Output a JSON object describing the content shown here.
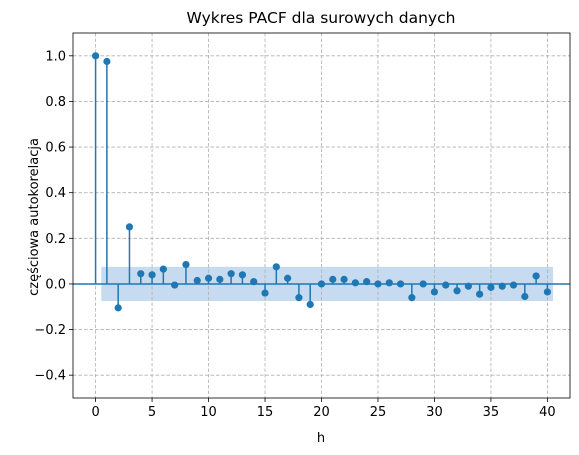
{
  "chart_data": {
    "type": "stem",
    "title": "Wykres PACF dla surowych danych",
    "xlabel": "h",
    "ylabel": "częściowa autokorelacja",
    "xlim": [
      -2,
      42
    ],
    "ylim": [
      -0.5,
      1.1
    ],
    "xticks": [
      "0",
      "5",
      "10",
      "15",
      "20",
      "25",
      "30",
      "35",
      "40"
    ],
    "yticks": [
      "−0.4",
      "−0.2",
      "0.0",
      "0.2",
      "0.4",
      "0.6",
      "0.8",
      "1.0"
    ],
    "grid": true,
    "confidence_band": {
      "lower": -0.075,
      "upper": 0.075,
      "from": 0.5,
      "to": 40.5,
      "color": "#c6dbef"
    },
    "series_color": "#1f77b4",
    "x": [
      0,
      1,
      2,
      3,
      4,
      5,
      6,
      7,
      8,
      9,
      10,
      11,
      12,
      13,
      14,
      15,
      16,
      17,
      18,
      19,
      20,
      21,
      22,
      23,
      24,
      25,
      26,
      27,
      28,
      29,
      30,
      31,
      32,
      33,
      34,
      35,
      36,
      37,
      38,
      39,
      40
    ],
    "y": [
      1.0,
      0.975,
      -0.105,
      0.25,
      0.045,
      0.04,
      0.065,
      -0.005,
      0.085,
      0.015,
      0.025,
      0.02,
      0.045,
      0.04,
      0.01,
      -0.04,
      0.075,
      0.025,
      -0.06,
      -0.09,
      0.0,
      0.02,
      0.02,
      0.005,
      0.01,
      0.0,
      0.005,
      0.0,
      -0.06,
      0.0,
      -0.035,
      -0.005,
      -0.03,
      -0.01,
      -0.045,
      -0.015,
      -0.01,
      -0.005,
      -0.055,
      0.035,
      -0.035
    ]
  }
}
